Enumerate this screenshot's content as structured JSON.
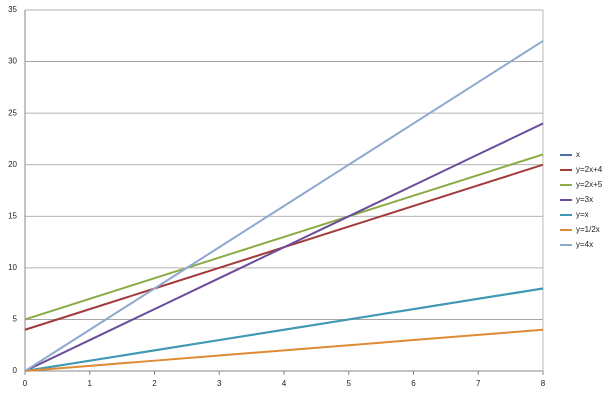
{
  "chart_data": {
    "type": "line",
    "x": [
      0,
      1,
      2,
      3,
      4,
      5,
      6,
      7,
      8
    ],
    "series": [
      {
        "name": "x",
        "color": "#4a6fa5",
        "values": [
          0,
          1,
          2,
          3,
          4,
          5,
          6,
          7,
          8
        ]
      },
      {
        "name": "y=2x+4",
        "color": "#a33b3b",
        "values": [
          4,
          6,
          8,
          10,
          12,
          14,
          16,
          18,
          20
        ]
      },
      {
        "name": "y=2x+5",
        "color": "#8aab45",
        "values": [
          5,
          7,
          9,
          11,
          13,
          15,
          17,
          19,
          21
        ]
      },
      {
        "name": "y=3x",
        "color": "#6b4c9a",
        "values": [
          0,
          3,
          6,
          9,
          12,
          15,
          18,
          21,
          24
        ]
      },
      {
        "name": "y=x",
        "color": "#3f9bb3",
        "values": [
          0,
          1,
          2,
          3,
          4,
          5,
          6,
          7,
          8
        ]
      },
      {
        "name": "y=1/2x",
        "color": "#e08a34",
        "values": [
          0,
          0.5,
          1,
          1.5,
          2,
          2.5,
          3,
          3.5,
          4
        ]
      },
      {
        "name": "y=4x",
        "color": "#8fa8d0",
        "values": [
          0,
          4,
          8,
          12,
          16,
          20,
          24,
          28,
          32
        ]
      }
    ],
    "xlim": [
      0,
      8
    ],
    "xticks": [
      0,
      1,
      2,
      3,
      4,
      5,
      6,
      7,
      8
    ],
    "ylim": [
      0,
      35
    ],
    "yticks": [
      0,
      5,
      10,
      15,
      20,
      25,
      30,
      35
    ],
    "grid": true,
    "legend": "right"
  }
}
